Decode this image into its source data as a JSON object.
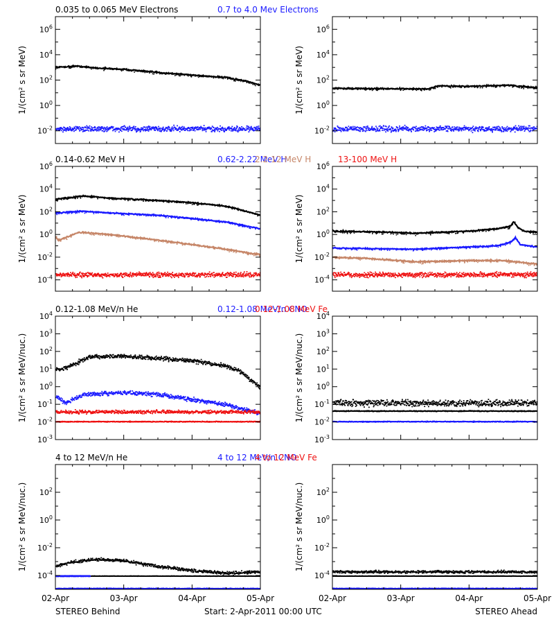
{
  "colors": {
    "black": "#000000",
    "blue": "#1a1aff",
    "tan": "#c68668",
    "red": "#ee1111"
  },
  "footer": {
    "left": "STEREO Behind",
    "center": "Start:  2-Apr-2011 00:00 UTC",
    "right": "STEREO Ahead"
  },
  "chart_data": [
    {
      "type": "scatter",
      "row": 0,
      "legend": [
        {
          "text": "0.035 to 0.065 MeV Electrons",
          "color": "black"
        },
        {
          "text": "0.7 to 4.0 Mev Electrons",
          "color": "blue"
        }
      ],
      "ylabel": "1/(cm² s sr MeV)",
      "yscale": "log",
      "ylim": [
        -3,
        7
      ],
      "yticks": [
        -2,
        0,
        2,
        4,
        6
      ],
      "xlim": [
        0,
        3
      ],
      "xticks": [
        "02-Apr",
        "03-Apr",
        "04-Apr",
        "05-Apr"
      ],
      "panels": [
        {
          "spacecraft": "STEREO Behind",
          "series": [
            {
              "color": "black",
              "style": "line",
              "noise": 0.04,
              "x": [
                0,
                0.3,
                0.6,
                1.0,
                1.5,
                2.0,
                2.5,
                2.8,
                3.0
              ],
              "y": [
                3.0,
                3.1,
                2.95,
                2.85,
                2.6,
                2.4,
                2.2,
                1.9,
                1.6
              ]
            },
            {
              "color": "blue",
              "style": "dots",
              "noise": 0.18,
              "x": [
                0,
                3
              ],
              "y": [
                -1.8,
                -1.8
              ]
            }
          ]
        },
        {
          "spacecraft": "STEREO Ahead",
          "series": [
            {
              "color": "black",
              "style": "line",
              "noise": 0.04,
              "x": [
                0,
                1.4,
                1.55,
                2.0,
                2.6,
                2.75,
                3.0
              ],
              "y": [
                1.35,
                1.3,
                1.55,
                1.5,
                1.6,
                1.5,
                1.4
              ]
            },
            {
              "color": "blue",
              "style": "dots",
              "noise": 0.18,
              "x": [
                0,
                3
              ],
              "y": [
                -1.8,
                -1.8
              ]
            }
          ]
        }
      ]
    },
    {
      "type": "scatter",
      "row": 1,
      "legend": [
        {
          "text": "0.14-0.62 MeV H",
          "color": "black"
        },
        {
          "text": "0.62-2.22 MeV H",
          "color": "blue"
        },
        {
          "text": "2.2-12 MeV H",
          "color": "tan"
        },
        {
          "text": "13-100 MeV H",
          "color": "red"
        }
      ],
      "ylabel": "1/(cm² s sr MeV)",
      "yscale": "log",
      "ylim": [
        -5,
        6
      ],
      "yticks": [
        -4,
        -2,
        0,
        2,
        4,
        6
      ],
      "xlim": [
        0,
        3
      ],
      "xticks": [
        "02-Apr",
        "03-Apr",
        "04-Apr",
        "05-Apr"
      ],
      "panels": [
        {
          "spacecraft": "STEREO Behind",
          "series": [
            {
              "color": "black",
              "style": "line",
              "noise": 0.04,
              "x": [
                0,
                0.4,
                0.8,
                1.5,
                2.0,
                2.5,
                2.75,
                3.0
              ],
              "y": [
                3.1,
                3.4,
                3.2,
                3.0,
                2.8,
                2.5,
                2.1,
                1.7
              ]
            },
            {
              "color": "blue",
              "style": "line",
              "noise": 0.04,
              "x": [
                0,
                0.4,
                0.8,
                1.5,
                2.0,
                2.5,
                2.75,
                3.0
              ],
              "y": [
                1.9,
                2.05,
                1.9,
                1.7,
                1.4,
                1.1,
                0.8,
                0.5
              ]
            },
            {
              "color": "tan",
              "style": "line",
              "noise": 0.05,
              "x": [
                0,
                0.05,
                0.35,
                0.8,
                1.5,
                2.0,
                2.5,
                2.8,
                3.0
              ],
              "y": [
                -0.2,
                -0.5,
                0.2,
                0.0,
                -0.5,
                -0.9,
                -1.3,
                -1.6,
                -1.8
              ]
            },
            {
              "color": "red",
              "style": "dots",
              "noise": 0.18,
              "x": [
                0,
                3
              ],
              "y": [
                -3.5,
                -3.5
              ]
            }
          ]
        },
        {
          "spacecraft": "STEREO Ahead",
          "series": [
            {
              "color": "black",
              "style": "line",
              "noise": 0.05,
              "x": [
                0,
                0.8,
                1.2,
                2.0,
                2.4,
                2.6,
                2.65,
                2.72,
                2.8,
                3.0
              ],
              "y": [
                0.3,
                0.2,
                0.1,
                0.3,
                0.5,
                0.7,
                1.1,
                0.6,
                0.3,
                0.2
              ]
            },
            {
              "color": "blue",
              "style": "line",
              "noise": 0.04,
              "x": [
                0,
                1.2,
                2.4,
                2.6,
                2.68,
                2.75,
                3.0
              ],
              "y": [
                -1.2,
                -1.3,
                -1.0,
                -0.7,
                -0.3,
                -0.9,
                -1.1
              ]
            },
            {
              "color": "tan",
              "style": "line",
              "noise": 0.05,
              "x": [
                0,
                0.5,
                1.2,
                2.0,
                2.5,
                3.0
              ],
              "y": [
                -2.0,
                -2.1,
                -2.4,
                -2.3,
                -2.3,
                -2.6
              ]
            },
            {
              "color": "red",
              "style": "dots",
              "noise": 0.18,
              "x": [
                0,
                3
              ],
              "y": [
                -3.5,
                -3.5
              ]
            }
          ]
        }
      ]
    },
    {
      "type": "scatter",
      "row": 2,
      "legend": [
        {
          "text": "0.12-1.08 MeV/n He",
          "color": "black"
        },
        {
          "text": "0.12-1.08 MeV/n CNO",
          "color": "blue"
        },
        {
          "text": "0.12-1.08 MeV Fe",
          "color": "red"
        }
      ],
      "ylabel": "1/(cm² s sr MeV/nuc.)",
      "yscale": "log",
      "ylim": [
        -3,
        4
      ],
      "yticks": [
        -3,
        -2,
        -1,
        0,
        1,
        2,
        3,
        4
      ],
      "xlim": [
        0,
        3
      ],
      "xticks": [
        "02-Apr",
        "03-Apr",
        "04-Apr",
        "05-Apr"
      ],
      "panels": [
        {
          "spacecraft": "STEREO Behind",
          "series": [
            {
              "color": "black",
              "style": "dots",
              "noise": 0.1,
              "x": [
                0,
                0.15,
                0.5,
                1.0,
                1.5,
                2.0,
                2.5,
                2.7,
                2.85,
                3.0
              ],
              "y": [
                1.0,
                1.1,
                1.75,
                1.75,
                1.65,
                1.5,
                1.2,
                0.9,
                0.4,
                0.0
              ]
            },
            {
              "color": "blue",
              "style": "dots",
              "noise": 0.1,
              "x": [
                0,
                0.15,
                0.4,
                1.0,
                1.5,
                2.0,
                2.5,
                2.8,
                3.0
              ],
              "y": [
                -0.5,
                -0.9,
                -0.4,
                -0.3,
                -0.4,
                -0.7,
                -1.0,
                -1.3,
                -1.5
              ]
            },
            {
              "color": "red",
              "style": "dots",
              "noise": 0.08,
              "x": [
                0,
                3
              ],
              "y": [
                -1.4,
                -1.4
              ]
            },
            {
              "color": "red",
              "style": "dots",
              "noise": 0.02,
              "x": [
                0,
                3
              ],
              "y": [
                -1.95,
                -1.95
              ]
            }
          ]
        },
        {
          "spacecraft": "STEREO Ahead",
          "series": [
            {
              "color": "black",
              "style": "dots",
              "noise": 0.15,
              "x": [
                0,
                3
              ],
              "y": [
                -0.9,
                -0.9
              ]
            },
            {
              "color": "black",
              "style": "dots",
              "noise": 0.02,
              "x": [
                0,
                3
              ],
              "y": [
                -1.35,
                -1.35
              ]
            },
            {
              "color": "blue",
              "style": "dots",
              "noise": 0.02,
              "x": [
                0,
                3
              ],
              "y": [
                -1.95,
                -1.95
              ]
            }
          ]
        }
      ]
    },
    {
      "type": "scatter",
      "row": 3,
      "legend": [
        {
          "text": "4 to 12 MeV/n He",
          "color": "black"
        },
        {
          "text": "4 to 12 MeV/n CNO",
          "color": "blue"
        },
        {
          "text": "4 to 12 MeV Fe",
          "color": "red"
        }
      ],
      "ylabel": "1/(cm² s sr MeV/nuc.)",
      "yscale": "log",
      "ylim": [
        -5,
        4
      ],
      "yticks": [
        -4,
        -2,
        0,
        2
      ],
      "xlim": [
        0,
        3
      ],
      "xticks": [
        "02-Apr",
        "03-Apr",
        "04-Apr",
        "05-Apr"
      ],
      "panels": [
        {
          "spacecraft": "STEREO Behind",
          "series": [
            {
              "color": "black",
              "style": "dots",
              "noise": 0.1,
              "x": [
                0,
                0.2,
                0.6,
                1.0,
                1.5,
                2.0,
                2.5,
                3.0
              ],
              "y": [
                -3.3,
                -3.0,
                -2.8,
                -2.9,
                -3.3,
                -3.6,
                -3.8,
                -3.7
              ]
            },
            {
              "color": "black",
              "style": "dots",
              "noise": 0.01,
              "x": [
                0,
                3
              ],
              "y": [
                -4.0,
                -4.0
              ]
            },
            {
              "color": "blue",
              "style": "dots",
              "noise": 0.02,
              "x": [
                0,
                0.5
              ],
              "y": [
                -4.0,
                -4.0
              ]
            },
            {
              "color": "blue",
              "style": "dots",
              "noise": 0.02,
              "x": [
                0,
                3
              ],
              "y": [
                -4.9,
                -4.9
              ]
            }
          ]
        },
        {
          "spacecraft": "STEREO Ahead",
          "series": [
            {
              "color": "black",
              "style": "dots",
              "noise": 0.08,
              "x": [
                0,
                3
              ],
              "y": [
                -3.7,
                -3.7
              ]
            },
            {
              "color": "black",
              "style": "dots",
              "noise": 0.01,
              "x": [
                0,
                3
              ],
              "y": [
                -4.0,
                -4.0
              ]
            },
            {
              "color": "blue",
              "style": "dots",
              "noise": 0.02,
              "x": [
                0,
                3
              ],
              "y": [
                -4.9,
                -4.9
              ]
            }
          ]
        }
      ]
    }
  ]
}
